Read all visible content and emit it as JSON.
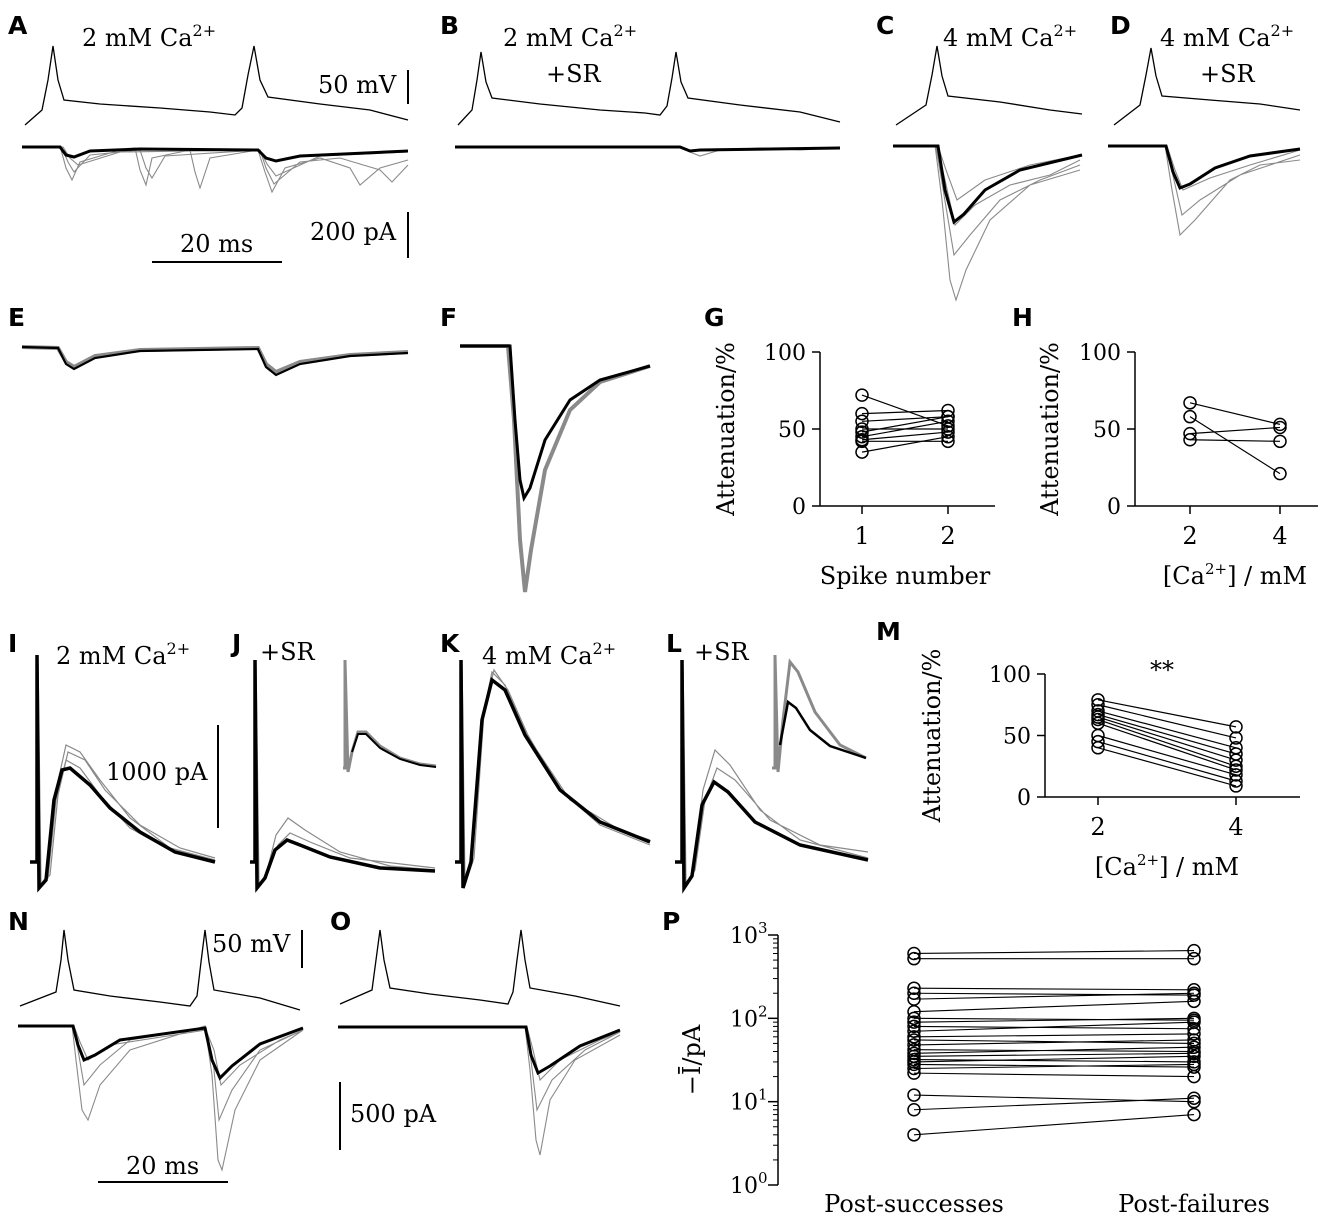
{
  "figure": {
    "panels": {
      "A": {
        "label": "A",
        "condition": "2 mM Ca",
        "cond_sup": "2+"
      },
      "B": {
        "label": "B",
        "condition": "2 mM Ca",
        "cond_sup": "2+",
        "extra": "+SR"
      },
      "C": {
        "label": "C",
        "condition": "4 mM Ca",
        "cond_sup": "2+"
      },
      "D": {
        "label": "D",
        "condition": "4 mM Ca",
        "cond_sup": "2+",
        "extra": "+SR"
      },
      "E": {
        "label": "E"
      },
      "F": {
        "label": "F"
      },
      "G": {
        "label": "G"
      },
      "H": {
        "label": "H"
      },
      "I": {
        "label": "I",
        "condition": "2 mM Ca",
        "cond_sup": "2+"
      },
      "J": {
        "label": "J",
        "condition": "+SR"
      },
      "K": {
        "label": "K",
        "condition": "4 mM Ca",
        "cond_sup": "2+"
      },
      "L": {
        "label": "L",
        "condition": "+SR"
      },
      "M": {
        "label": "M"
      },
      "N": {
        "label": "N"
      },
      "O": {
        "label": "O"
      },
      "P": {
        "label": "P"
      }
    },
    "scalebars": {
      "a_voltage": "50 mV",
      "a_current": "200 pA",
      "a_time": "20 ms",
      "i_current": "1000 pA",
      "n_voltage": "50 mV",
      "o_current": "500 pA",
      "n_time": "20 ms"
    },
    "significance": "**"
  },
  "chart_data": [
    {
      "panel": "G",
      "type": "scatter",
      "xlabel": "Spike number",
      "ylabel": "Attenuation/%",
      "categories": [
        "1",
        "2"
      ],
      "yticks": [
        0,
        50,
        100
      ],
      "ylim": [
        0,
        100
      ],
      "pairs": [
        [
          72,
          52
        ],
        [
          60,
          62
        ],
        [
          55,
          58
        ],
        [
          50,
          50
        ],
        [
          48,
          58
        ],
        [
          45,
          55
        ],
        [
          43,
          48
        ],
        [
          42,
          42
        ],
        [
          35,
          45
        ]
      ]
    },
    {
      "panel": "H",
      "type": "scatter",
      "xlabel": "[Ca2+] / mM",
      "ylabel": "Attenuation/%",
      "categories": [
        "2",
        "4"
      ],
      "yticks": [
        0,
        50,
        100
      ],
      "ylim": [
        0,
        100
      ],
      "pairs": [
        [
          67,
          53
        ],
        [
          58,
          21
        ],
        [
          47,
          51
        ],
        [
          43,
          42
        ]
      ]
    },
    {
      "panel": "M",
      "type": "scatter",
      "xlabel": "[Ca2+] / mM",
      "ylabel": "Attenuation/%",
      "categories": [
        "2",
        "4"
      ],
      "yticks": [
        0,
        50,
        100
      ],
      "ylim": [
        0,
        100
      ],
      "pairs": [
        [
          79,
          57
        ],
        [
          75,
          48
        ],
        [
          70,
          40
        ],
        [
          67,
          35
        ],
        [
          65,
          30
        ],
        [
          63,
          25
        ],
        [
          60,
          22
        ],
        [
          50,
          18
        ],
        [
          45,
          13
        ],
        [
          40,
          9
        ]
      ]
    },
    {
      "panel": "P",
      "type": "scatter",
      "scale": "log",
      "xlabel": "",
      "ylabel": "−Ī/pA",
      "categories": [
        "Post-successes",
        "Post-failures"
      ],
      "yticks": [
        "10^0",
        "10^1",
        "10^2",
        "10^3"
      ],
      "ylim": [
        1,
        1000
      ],
      "pairs": [
        [
          600,
          650
        ],
        [
          520,
          520
        ],
        [
          230,
          220
        ],
        [
          200,
          190
        ],
        [
          170,
          200
        ],
        [
          120,
          160
        ],
        [
          100,
          95
        ],
        [
          90,
          100
        ],
        [
          80,
          75
        ],
        [
          70,
          90
        ],
        [
          60,
          65
        ],
        [
          55,
          50
        ],
        [
          48,
          55
        ],
        [
          42,
          40
        ],
        [
          38,
          45
        ],
        [
          35,
          38
        ],
        [
          32,
          30
        ],
        [
          30,
          35
        ],
        [
          28,
          26
        ],
        [
          25,
          28
        ],
        [
          22,
          20
        ],
        [
          12,
          10
        ],
        [
          8,
          11
        ],
        [
          4,
          7
        ]
      ]
    }
  ]
}
